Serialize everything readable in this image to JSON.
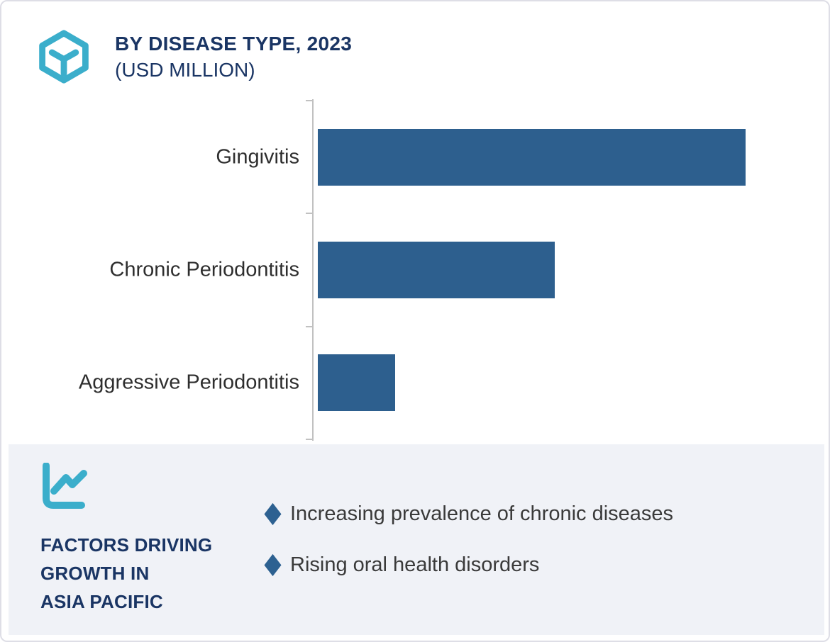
{
  "header": {
    "title": "BY DISEASE TYPE, 2023",
    "subtitle": "(USD MILLION)"
  },
  "chart_data": {
    "type": "bar",
    "orientation": "horizontal",
    "title": "BY DISEASE TYPE, 2023",
    "subtitle": "(USD MILLION)",
    "categories": [
      "Gingivitis",
      "Chronic Periodontitis",
      "Aggressive Periodontitis"
    ],
    "values_relative_pct_of_max": [
      100,
      55.4,
      18.1
    ],
    "value_labels_shown": false,
    "axis_tick_labels_shown": false,
    "gridlines": false,
    "legend_position": "none",
    "bar_color": "#2D5F8E",
    "axis_color": "#C1C1C1"
  },
  "factors": {
    "title": "FACTORS DRIVING\nGROWTH IN\nASIA PACIFIC",
    "items": [
      "Increasing prevalence of chronic diseases",
      "Rising oral health disorders"
    ],
    "bullet_color": "#2D6191"
  },
  "colors": {
    "accent_teal": "#3BAECB",
    "navy": "#1A3564",
    "bar_blue": "#2D5F8E",
    "panel_bg": "#F0F2F7",
    "card_border": "#DEDEE6"
  }
}
